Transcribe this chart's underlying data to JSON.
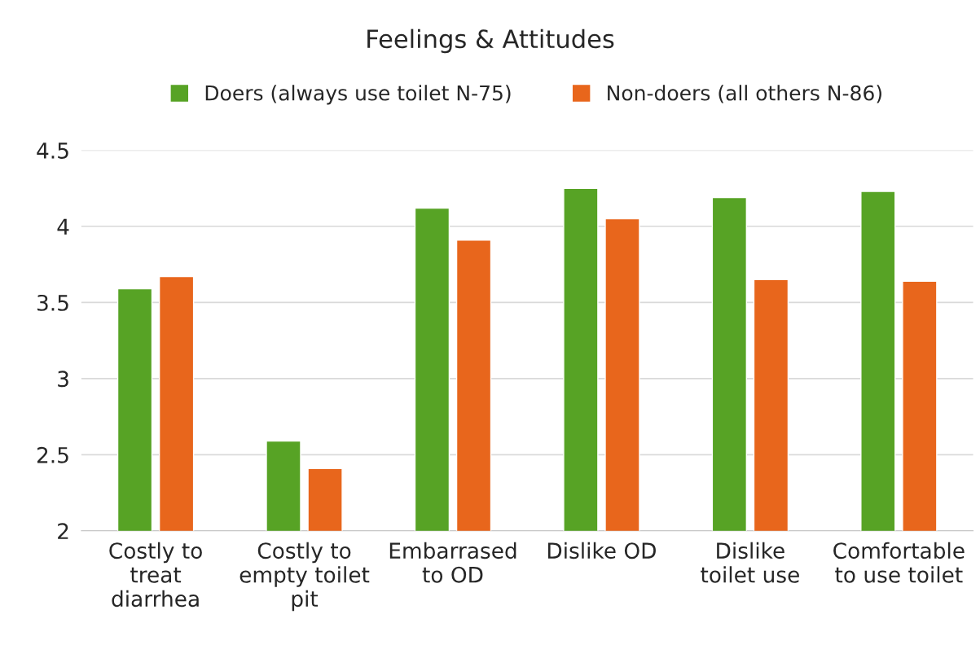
{
  "chart_data": {
    "type": "bar",
    "title": "Feelings & Attitudes",
    "categories": [
      "Costly to\ntreat\ndiarrhea",
      "Costly to\nempty toilet\npit",
      "Embarrased\nto OD",
      "Dislike OD",
      "Dislike\ntoilet use",
      "Comfortable\nto use toilet"
    ],
    "series": [
      {
        "name": "Doers (always use toilet N-75)",
        "color": "#57a325",
        "values": [
          3.59,
          2.59,
          4.12,
          4.25,
          4.19,
          4.23
        ]
      },
      {
        "name": "Non-doers (all others N-86)",
        "color": "#e8661c",
        "values": [
          3.67,
          2.41,
          3.91,
          4.05,
          3.65,
          3.64
        ]
      }
    ],
    "ylim": [
      2,
      4.5
    ],
    "yticks": [
      2,
      2.5,
      3,
      3.5,
      4,
      4.5
    ],
    "grid": "y",
    "legend": "top"
  }
}
